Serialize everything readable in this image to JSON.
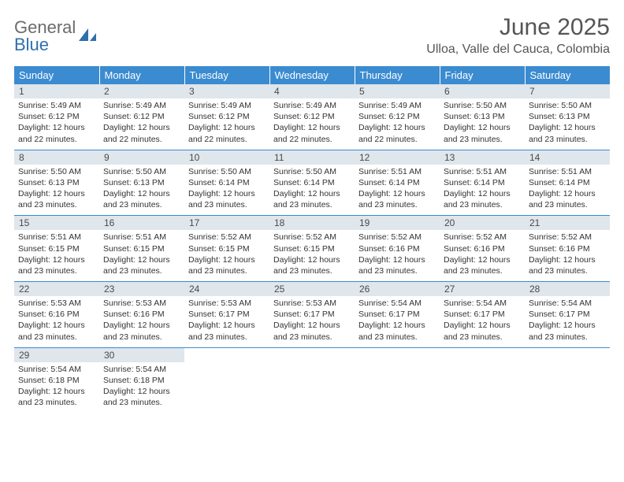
{
  "branding": {
    "logo_top": "General",
    "logo_bottom": "Blue",
    "logo_color_gray": "#6b6b6b",
    "logo_color_blue": "#2f6fae"
  },
  "header": {
    "title": "June 2025",
    "location": "Ulloa, Valle del Cauca, Colombia"
  },
  "style": {
    "header_bg": "#3b8bd0",
    "header_text": "#ffffff",
    "daynum_bg": "#dfe6ec",
    "row_border": "#3b8bd0",
    "body_text": "#333333",
    "title_color": "#555555",
    "font_family": "Arial, Helvetica, sans-serif",
    "title_fontsize_pt": 22,
    "location_fontsize_pt": 12,
    "dayheader_fontsize_pt": 10,
    "info_fontsize_pt": 8
  },
  "weekdays": [
    "Sunday",
    "Monday",
    "Tuesday",
    "Wednesday",
    "Thursday",
    "Friday",
    "Saturday"
  ],
  "days": [
    {
      "n": "1",
      "sr": "5:49 AM",
      "ss": "6:12 PM",
      "dl": "12 hours and 22 minutes."
    },
    {
      "n": "2",
      "sr": "5:49 AM",
      "ss": "6:12 PM",
      "dl": "12 hours and 22 minutes."
    },
    {
      "n": "3",
      "sr": "5:49 AM",
      "ss": "6:12 PM",
      "dl": "12 hours and 22 minutes."
    },
    {
      "n": "4",
      "sr": "5:49 AM",
      "ss": "6:12 PM",
      "dl": "12 hours and 22 minutes."
    },
    {
      "n": "5",
      "sr": "5:49 AM",
      "ss": "6:12 PM",
      "dl": "12 hours and 22 minutes."
    },
    {
      "n": "6",
      "sr": "5:50 AM",
      "ss": "6:13 PM",
      "dl": "12 hours and 23 minutes."
    },
    {
      "n": "7",
      "sr": "5:50 AM",
      "ss": "6:13 PM",
      "dl": "12 hours and 23 minutes."
    },
    {
      "n": "8",
      "sr": "5:50 AM",
      "ss": "6:13 PM",
      "dl": "12 hours and 23 minutes."
    },
    {
      "n": "9",
      "sr": "5:50 AM",
      "ss": "6:13 PM",
      "dl": "12 hours and 23 minutes."
    },
    {
      "n": "10",
      "sr": "5:50 AM",
      "ss": "6:14 PM",
      "dl": "12 hours and 23 minutes."
    },
    {
      "n": "11",
      "sr": "5:50 AM",
      "ss": "6:14 PM",
      "dl": "12 hours and 23 minutes."
    },
    {
      "n": "12",
      "sr": "5:51 AM",
      "ss": "6:14 PM",
      "dl": "12 hours and 23 minutes."
    },
    {
      "n": "13",
      "sr": "5:51 AM",
      "ss": "6:14 PM",
      "dl": "12 hours and 23 minutes."
    },
    {
      "n": "14",
      "sr": "5:51 AM",
      "ss": "6:14 PM",
      "dl": "12 hours and 23 minutes."
    },
    {
      "n": "15",
      "sr": "5:51 AM",
      "ss": "6:15 PM",
      "dl": "12 hours and 23 minutes."
    },
    {
      "n": "16",
      "sr": "5:51 AM",
      "ss": "6:15 PM",
      "dl": "12 hours and 23 minutes."
    },
    {
      "n": "17",
      "sr": "5:52 AM",
      "ss": "6:15 PM",
      "dl": "12 hours and 23 minutes."
    },
    {
      "n": "18",
      "sr": "5:52 AM",
      "ss": "6:15 PM",
      "dl": "12 hours and 23 minutes."
    },
    {
      "n": "19",
      "sr": "5:52 AM",
      "ss": "6:16 PM",
      "dl": "12 hours and 23 minutes."
    },
    {
      "n": "20",
      "sr": "5:52 AM",
      "ss": "6:16 PM",
      "dl": "12 hours and 23 minutes."
    },
    {
      "n": "21",
      "sr": "5:52 AM",
      "ss": "6:16 PM",
      "dl": "12 hours and 23 minutes."
    },
    {
      "n": "22",
      "sr": "5:53 AM",
      "ss": "6:16 PM",
      "dl": "12 hours and 23 minutes."
    },
    {
      "n": "23",
      "sr": "5:53 AM",
      "ss": "6:16 PM",
      "dl": "12 hours and 23 minutes."
    },
    {
      "n": "24",
      "sr": "5:53 AM",
      "ss": "6:17 PM",
      "dl": "12 hours and 23 minutes."
    },
    {
      "n": "25",
      "sr": "5:53 AM",
      "ss": "6:17 PM",
      "dl": "12 hours and 23 minutes."
    },
    {
      "n": "26",
      "sr": "5:54 AM",
      "ss": "6:17 PM",
      "dl": "12 hours and 23 minutes."
    },
    {
      "n": "27",
      "sr": "5:54 AM",
      "ss": "6:17 PM",
      "dl": "12 hours and 23 minutes."
    },
    {
      "n": "28",
      "sr": "5:54 AM",
      "ss": "6:17 PM",
      "dl": "12 hours and 23 minutes."
    },
    {
      "n": "29",
      "sr": "5:54 AM",
      "ss": "6:18 PM",
      "dl": "12 hours and 23 minutes."
    },
    {
      "n": "30",
      "sr": "5:54 AM",
      "ss": "6:18 PM",
      "dl": "12 hours and 23 minutes."
    }
  ],
  "labels": {
    "sunrise": "Sunrise:",
    "sunset": "Sunset:",
    "daylight": "Daylight:"
  },
  "layout": {
    "first_weekday_index": 0,
    "total_days": 30,
    "columns": 7,
    "rows": 5
  }
}
